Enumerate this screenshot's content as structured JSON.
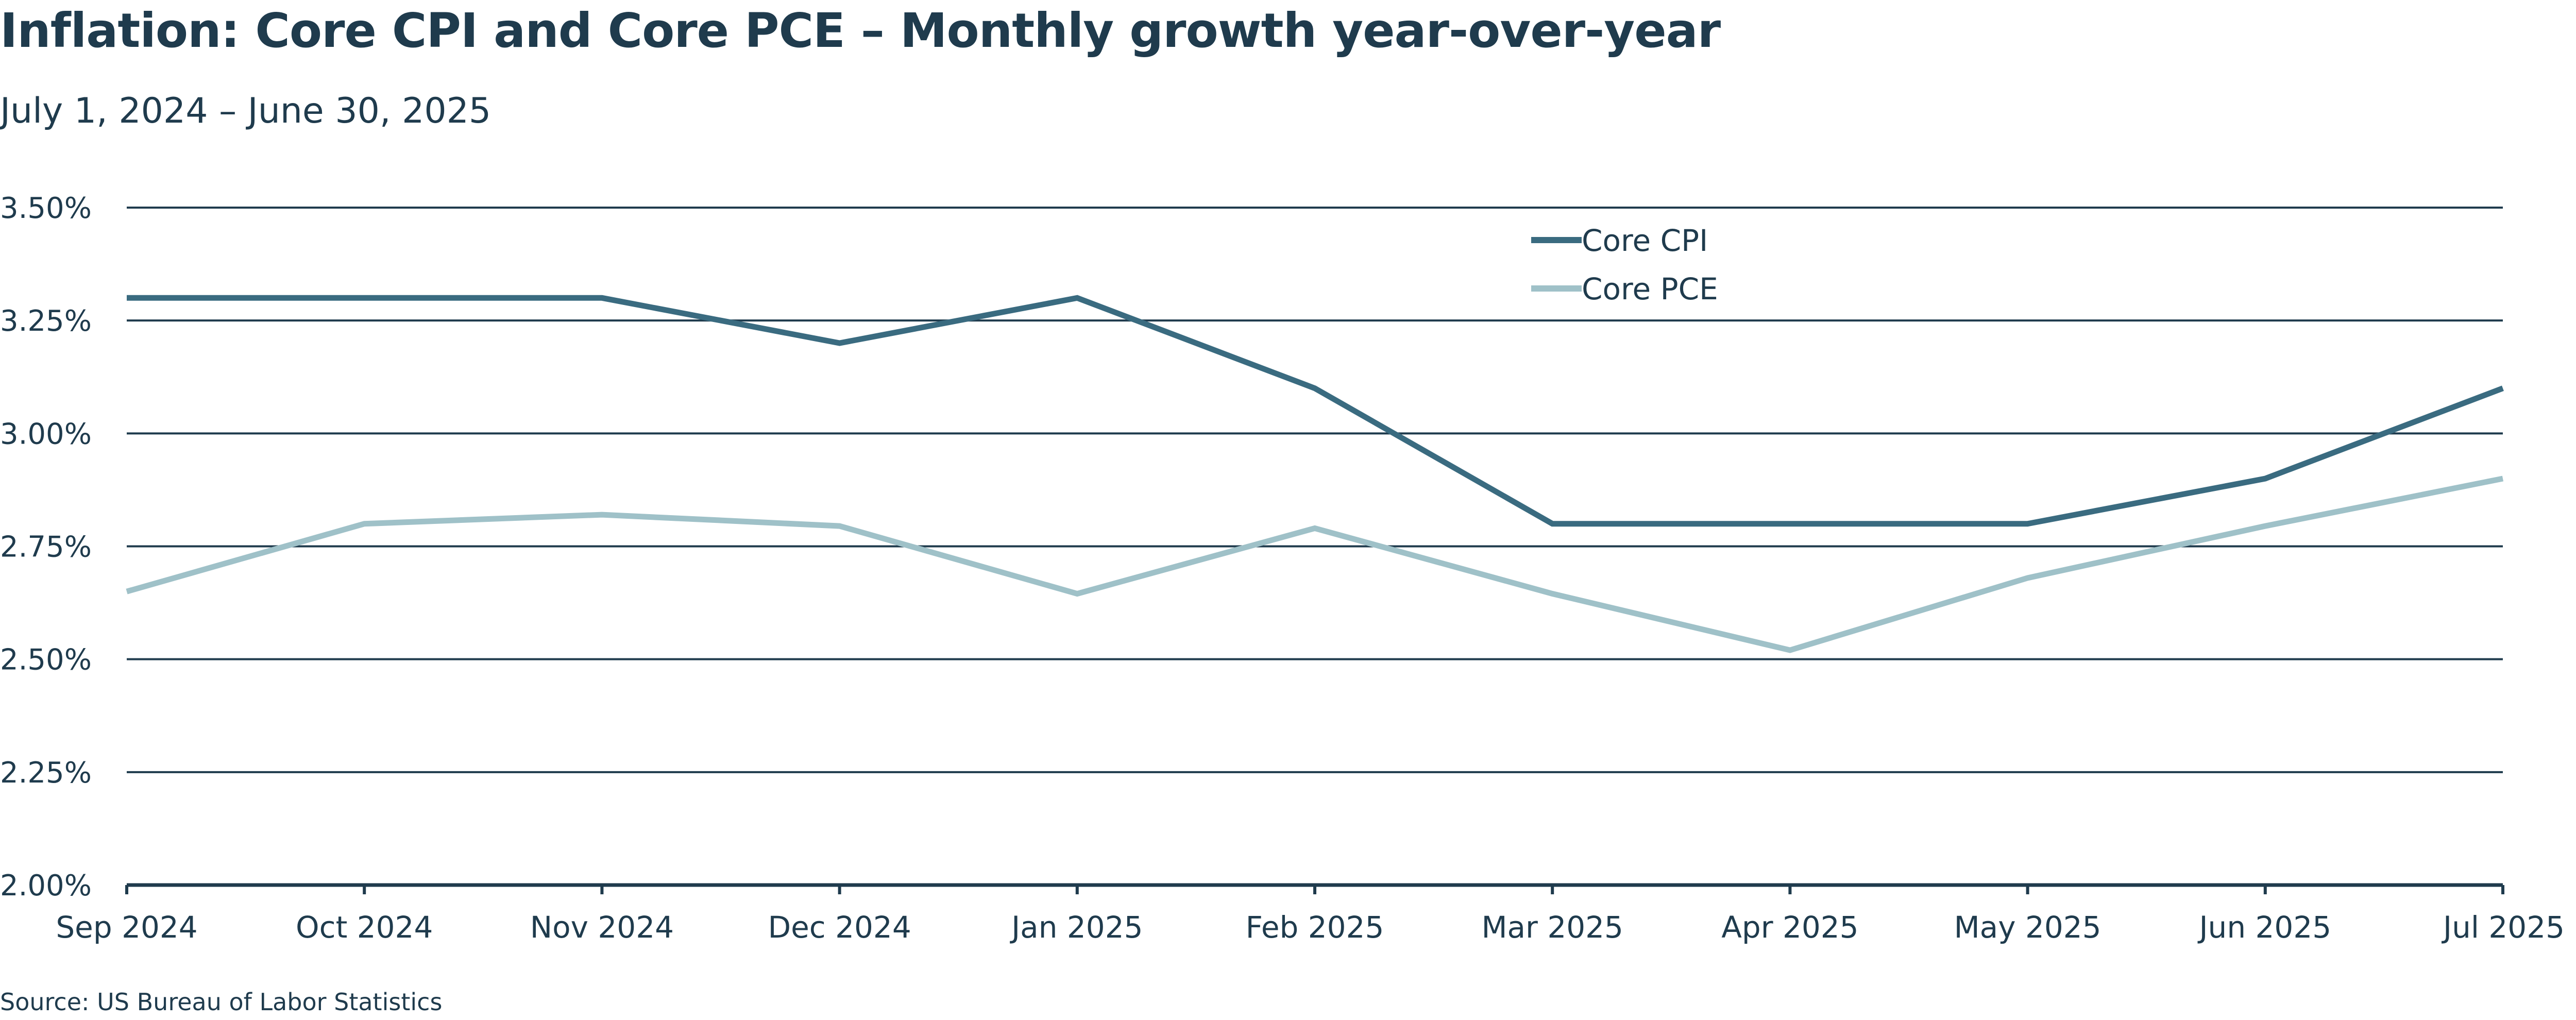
{
  "title": "Inflation: Core CPI and Core PCE – Monthly growth year-over-year",
  "subtitle": "July 1, 2024 – June 30, 2025",
  "source": "Source: US Bureau of Labor Statistics",
  "colors": {
    "core_cpi": "#3a6b80",
    "core_pce": "#9fc1c8",
    "grid": "#1f3b4d",
    "text": "#1f3b4d"
  },
  "chart_data": {
    "type": "line",
    "categories": [
      "Sep 2024",
      "Oct 2024",
      "Nov 2024",
      "Dec 2024",
      "Jan 2025",
      "Feb 2025",
      "Mar 2025",
      "Apr 2025",
      "May 2025",
      "Jun 2025",
      "Jul 2025"
    ],
    "series": [
      {
        "name": "Core CPI",
        "color": "#3a6b80",
        "values": [
          3.3,
          3.3,
          3.3,
          3.2,
          3.3,
          3.1,
          2.8,
          2.8,
          2.8,
          2.9,
          3.1
        ]
      },
      {
        "name": "Core PCE",
        "color": "#9fc1c8",
        "values": [
          2.65,
          2.8,
          2.82,
          2.795,
          2.645,
          2.79,
          2.645,
          2.52,
          2.68,
          2.795,
          2.9
        ]
      }
    ],
    "ylim": [
      2.0,
      3.5
    ],
    "yticks": [
      2.0,
      2.25,
      2.5,
      2.75,
      3.0,
      3.25,
      3.5
    ],
    "ytick_labels": [
      "2.00%",
      "2.25%",
      "2.50%",
      "2.75%",
      "3.00%",
      "3.25%",
      "3.50%"
    ],
    "xlabel": "",
    "ylabel": "",
    "grid": true,
    "legend": "top-center"
  }
}
